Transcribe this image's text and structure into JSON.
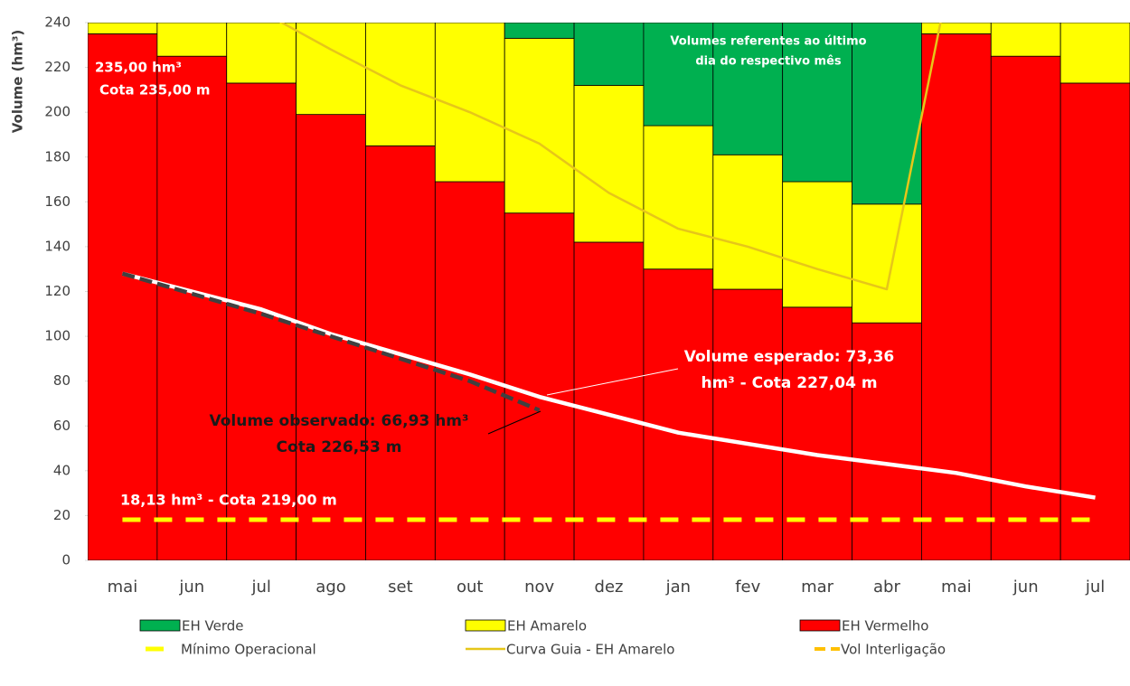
{
  "chart_data": {
    "type": "bar",
    "stacked": true,
    "ylabel": "Volume (hm³)",
    "categories": [
      "mai",
      "jun",
      "jul",
      "ago",
      "set",
      "out",
      "nov",
      "dez",
      "jan",
      "fev",
      "mar",
      "abr",
      "mai",
      "jun",
      "jul"
    ],
    "ylim": [
      0,
      240
    ],
    "yticks": [
      0,
      20,
      40,
      60,
      80,
      100,
      120,
      140,
      160,
      180,
      200,
      220,
      240
    ],
    "series": [
      {
        "name": "EH Verde",
        "type": "bar",
        "color": "#00b050",
        "values": [
          0,
          0,
          0,
          0,
          0,
          0,
          7,
          28,
          46,
          59,
          71,
          81,
          0,
          0,
          0
        ]
      },
      {
        "name": "EH Amarelo",
        "type": "bar",
        "color": "#ffff00",
        "values": [
          5,
          15,
          27,
          41,
          55,
          71,
          78,
          70,
          64,
          60,
          56,
          53,
          5,
          15,
          27
        ]
      },
      {
        "name": "EH Vermelho",
        "type": "bar",
        "color": "#ff0000",
        "values": [
          235,
          225,
          213,
          199,
          185,
          169,
          155,
          142,
          130,
          121,
          113,
          106,
          235,
          225,
          213
        ]
      },
      {
        "name": "Mínimo Operacional",
        "type": "line",
        "color": "#ffff00",
        "dashed": true,
        "values": [
          18.13,
          18.13,
          18.13,
          18.13,
          18.13,
          18.13,
          18.13,
          18.13,
          18.13,
          18.13,
          18.13,
          18.13,
          18.13,
          18.13,
          18.13
        ]
      },
      {
        "name": "Curva Guia - EH Amarelo",
        "type": "line",
        "color": "#e6c619",
        "dashed": false,
        "values": [
          null,
          null,
          245,
          228,
          212,
          200,
          186,
          164,
          148,
          140,
          130,
          121,
          275,
          null,
          null
        ]
      },
      {
        "name": "Vol Interligação",
        "type": "line",
        "color": "#ffc000",
        "dashed": true,
        "values": [
          null,
          null,
          null,
          null,
          null,
          null,
          null,
          null,
          null,
          null,
          null,
          null,
          null,
          null,
          null
        ]
      },
      {
        "type": "line",
        "color": "#ffffff",
        "dashed": false,
        "values": [
          128,
          120,
          112,
          101,
          92,
          83,
          73,
          65,
          57,
          52,
          47,
          43,
          39,
          33,
          28
        ]
      },
      {
        "type": "line",
        "color": "#404040",
        "dashed": true,
        "values": [
          128,
          119,
          110,
          100,
          90,
          80,
          67,
          null,
          null,
          null,
          null,
          null,
          null,
          null,
          null
        ]
      }
    ],
    "annotations": [
      {
        "lines": [
          "235,00 hm³",
          "Cota 235,00 m"
        ]
      },
      {
        "lines": [
          "Volumes referentes ao último",
          "dia do respectivo mês"
        ]
      },
      {
        "lines": [
          "Volume esperado: 73,36",
          "hm³ - Cota 227,04 m"
        ]
      },
      {
        "lines": [
          "Volume observado: 66,93 hm³",
          "Cota 226,53 m"
        ]
      },
      {
        "lines": [
          "18,13 hm³ - Cota 219,00 m"
        ]
      }
    ]
  }
}
